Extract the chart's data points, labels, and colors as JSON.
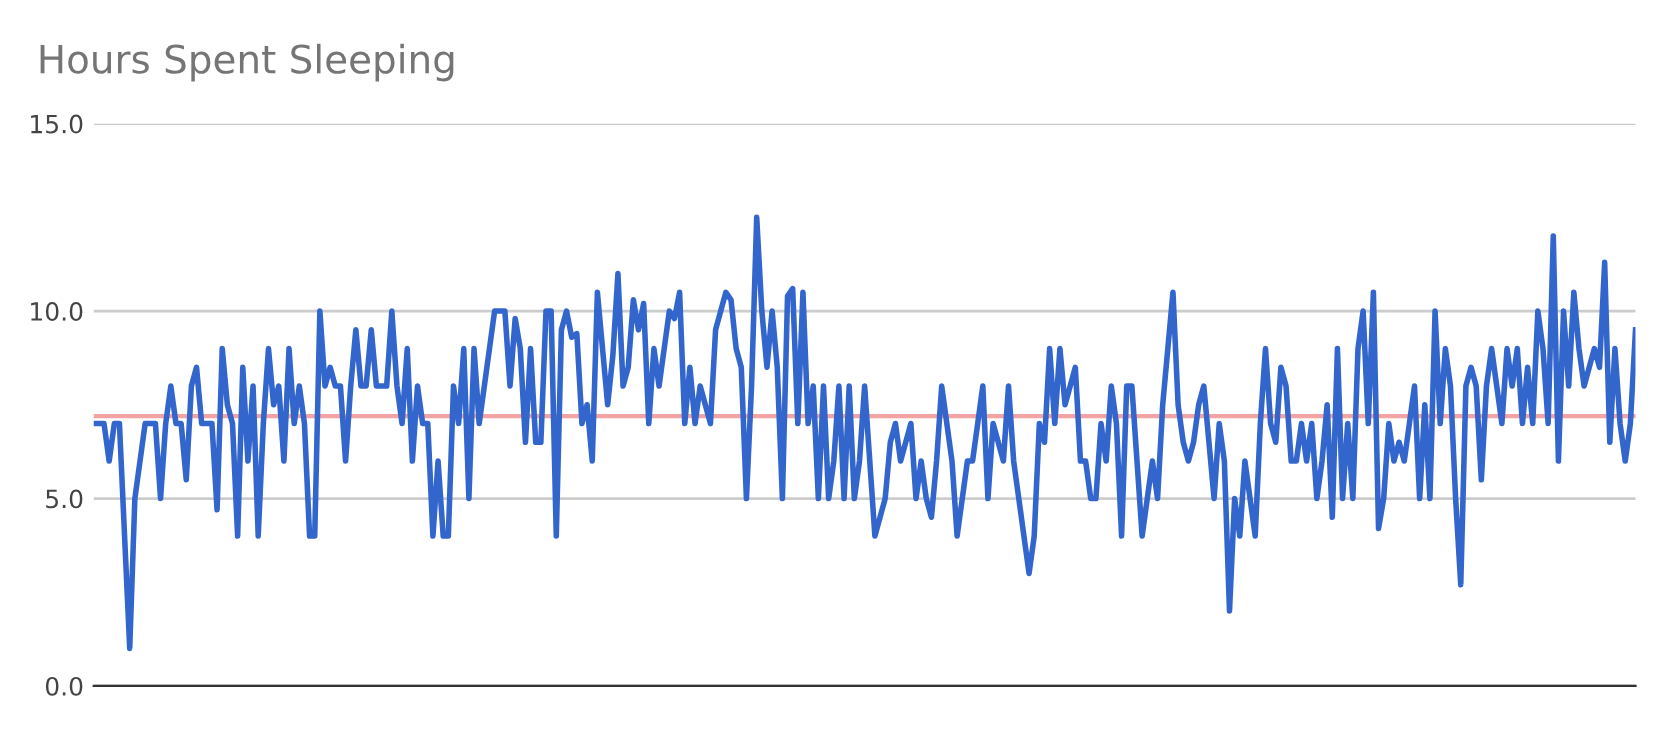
{
  "chart_data": {
    "type": "line",
    "title": "Hours Spent Sleeping",
    "categories": [
      null,
      null,
      null,
      null,
      null,
      null,
      null,
      null,
      null,
      null,
      null,
      null,
      null,
      null,
      null,
      null,
      null,
      null,
      null,
      null,
      null,
      null,
      null,
      null,
      null,
      null,
      null,
      null,
      null,
      null,
      null,
      null,
      null,
      null,
      null,
      null,
      null,
      null,
      null,
      null,
      null,
      null,
      null,
      null,
      null,
      null,
      null,
      null,
      null,
      null,
      null,
      null,
      null,
      null,
      null,
      null,
      null,
      null,
      null,
      null,
      null,
      null,
      null,
      null,
      null,
      null,
      null,
      null,
      null,
      null,
      null,
      null,
      null,
      null,
      null,
      null,
      null,
      null,
      null,
      null,
      null,
      null,
      null,
      null,
      null,
      null,
      null,
      null,
      null,
      null,
      null,
      null,
      null,
      null,
      null,
      null,
      null,
      null,
      null,
      null,
      null,
      null,
      null,
      null,
      null,
      null,
      null,
      null,
      null,
      null,
      null,
      null,
      null,
      null,
      null,
      null,
      null,
      null,
      null,
      null,
      null,
      null,
      null,
      null,
      null,
      null,
      null,
      null,
      null,
      null,
      null,
      null,
      null,
      null,
      null,
      null,
      null,
      null,
      null,
      null,
      null,
      null,
      null,
      null,
      null,
      null,
      null,
      null,
      null,
      null,
      null,
      null,
      null,
      null,
      null,
      null,
      null,
      null,
      null,
      null,
      null,
      null,
      null,
      null,
      null,
      null,
      null,
      null,
      null,
      null,
      null,
      null,
      null,
      null,
      null,
      null,
      null,
      null,
      null,
      null,
      null,
      null,
      null,
      null,
      null,
      null,
      null,
      null,
      null,
      null,
      null,
      null,
      null,
      null,
      null,
      null,
      null,
      null,
      null,
      null,
      null,
      null,
      null,
      null,
      null,
      null,
      null,
      null,
      null,
      null,
      null,
      null,
      null,
      null,
      null,
      null,
      null,
      null,
      null,
      null,
      null,
      null,
      null,
      null,
      null,
      null,
      null,
      null,
      null,
      null,
      null,
      null,
      null,
      null,
      null,
      null,
      null,
      null,
      null,
      null,
      null,
      null,
      null,
      null,
      null,
      null,
      null,
      null,
      null,
      null,
      null,
      null,
      null,
      null,
      null,
      null,
      null,
      null,
      null,
      null,
      null,
      null,
      null,
      null,
      null,
      null,
      null,
      null,
      null,
      null,
      null,
      null,
      null,
      null,
      null,
      null,
      null,
      null,
      null,
      null,
      null,
      null,
      null,
      null,
      null,
      null,
      null,
      null,
      null,
      null,
      null,
      null,
      null,
      null,
      null,
      null,
      null,
      null,
      null,
      null,
      null
    ],
    "series": [
      {
        "color": "#3366cc",
        "values": [
          7,
          7,
          7,
          6,
          7,
          7,
          4,
          1,
          5,
          6,
          7,
          7,
          7,
          5,
          7,
          8,
          7,
          7,
          5.5,
          8,
          8.5,
          7,
          7,
          7,
          4.7,
          9,
          7.5,
          7,
          4,
          8.5,
          6,
          8,
          4,
          7,
          9,
          7.5,
          8,
          6,
          9,
          7,
          8,
          7,
          4,
          4,
          10,
          8,
          8.5,
          8,
          8,
          6,
          8,
          9.5,
          8,
          8,
          9.5,
          8,
          8,
          8,
          10,
          8,
          7,
          9,
          6,
          8,
          7,
          7,
          4,
          6,
          4,
          4,
          8,
          7,
          9,
          5,
          9,
          7,
          8,
          9,
          10,
          10,
          10,
          8,
          9.8,
          9,
          6.5,
          9,
          6.5,
          6.5,
          10,
          10,
          4,
          9.5,
          10,
          9.3,
          9.4,
          7,
          7.5,
          6,
          10.5,
          9,
          7.5,
          8.8,
          11,
          8,
          8.5,
          10.3,
          9.5,
          10.2,
          7,
          9,
          8,
          9,
          10,
          9.8,
          10.5,
          7,
          8.5,
          7,
          8,
          7.5,
          7,
          9.5,
          10,
          10.5,
          10.3,
          9,
          8.5,
          5,
          8,
          12.5,
          10,
          8.5,
          10,
          8.5,
          5,
          10.4,
          10.6,
          7,
          10.5,
          7,
          8,
          5,
          8,
          5,
          6,
          8,
          5,
          8,
          5,
          6,
          8,
          6,
          4,
          4.5,
          5,
          6.5,
          7,
          6,
          6.5,
          7,
          5,
          6,
          5,
          4.5,
          6,
          8,
          7,
          6,
          4,
          5,
          6,
          6,
          7,
          8,
          5,
          7,
          6.5,
          6,
          8,
          6,
          5,
          4,
          3,
          4,
          7,
          6.5,
          9,
          7,
          9,
          7.5,
          8,
          8.5,
          6,
          6,
          5,
          5,
          7,
          6,
          8,
          7,
          4,
          8,
          8,
          6,
          4,
          5,
          6,
          5,
          7.5,
          9,
          10.5,
          7.5,
          6.5,
          6,
          6.5,
          7.5,
          8,
          6.5,
          5,
          7,
          6,
          2,
          5,
          4,
          6,
          5,
          4,
          7,
          9,
          7,
          6.5,
          8.5,
          8,
          6,
          6,
          7,
          6,
          7,
          5,
          6,
          7.5,
          4.5,
          9,
          5,
          7,
          5,
          9,
          10,
          7,
          10.5,
          4.2,
          5,
          7,
          6,
          6.5,
          6,
          7,
          8,
          5,
          7.5,
          5,
          10,
          7,
          9,
          8,
          5,
          2.7,
          8,
          8.5,
          8,
          5.5,
          8,
          9,
          8,
          7,
          9,
          8,
          9,
          7,
          8.5,
          7,
          10,
          9,
          7,
          12,
          6,
          10,
          8,
          10.5,
          9,
          8,
          8.5,
          9,
          8.5,
          11.3,
          6.5,
          9,
          7,
          6,
          7,
          9.5
        ]
      }
    ],
    "ylim": [
      0,
      15
    ],
    "yticks": [
      {
        "value": 0,
        "label": "0.0"
      },
      {
        "value": 5,
        "label": "5.0"
      },
      {
        "value": 10,
        "label": "10.0"
      },
      {
        "value": 15,
        "label": "15.0"
      }
    ],
    "ref_lines": [
      {
        "axis": "y",
        "value": 7.2,
        "label": null,
        "color": "#f4a3a3"
      }
    ],
    "grid": "y",
    "legend": false,
    "tick_labels": "y"
  }
}
